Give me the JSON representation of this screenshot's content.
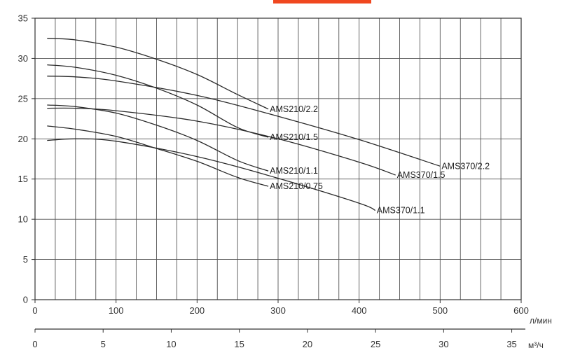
{
  "accent_bar_color": "#f0471f",
  "chart_data": {
    "type": "line",
    "title": "",
    "ylabel": "",
    "ylim": [
      0,
      35
    ],
    "y_ticks": [
      "0",
      "5",
      "10",
      "15",
      "20",
      "25",
      "30",
      "35"
    ],
    "x_axes": [
      {
        "unit": "л/мин",
        "range": [
          0,
          600
        ],
        "ticks": [
          "0",
          "100",
          "200",
          "300",
          "400",
          "500",
          "600"
        ]
      },
      {
        "unit": "м³/ч",
        "range": [
          0,
          36
        ],
        "ticks": [
          "0",
          "5",
          "10",
          "15",
          "20",
          "25",
          "30",
          "35"
        ]
      }
    ],
    "grid": true,
    "legend": "inline labels at curve ends",
    "series": [
      {
        "name": "AMS210/2.2",
        "x": [
          15,
          50,
          100,
          150,
          200,
          250,
          288
        ],
        "y": [
          32.5,
          32.3,
          31.4,
          29.9,
          28.0,
          25.5,
          23.7
        ]
      },
      {
        "name": "AMS210/1.5",
        "x": [
          15,
          50,
          100,
          150,
          200,
          250,
          288
        ],
        "y": [
          29.2,
          28.9,
          27.9,
          26.3,
          24.2,
          21.4,
          20.2
        ]
      },
      {
        "name": "AMS210/1.1",
        "x": [
          15,
          50,
          100,
          150,
          200,
          250,
          288
        ],
        "y": [
          24.2,
          24.0,
          23.2,
          21.7,
          19.8,
          17.3,
          16.0
        ]
      },
      {
        "name": "AMS210/0.75",
        "x": [
          15,
          50,
          100,
          150,
          200,
          250,
          288
        ],
        "y": [
          21.6,
          21.2,
          20.3,
          18.8,
          17.2,
          15.2,
          14.1
        ]
      },
      {
        "name": "AMS370/2.2",
        "x": [
          15,
          50,
          100,
          200,
          300,
          400,
          500
        ],
        "y": [
          27.8,
          27.7,
          27.2,
          25.4,
          22.8,
          19.9,
          16.6
        ]
      },
      {
        "name": "AMS370/1.5",
        "x": [
          15,
          50,
          100,
          200,
          300,
          400,
          445
        ],
        "y": [
          23.8,
          23.8,
          23.5,
          22.2,
          20.0,
          17.1,
          15.5
        ]
      },
      {
        "name": "AMS370/1.1",
        "x": [
          15,
          50,
          100,
          200,
          300,
          400,
          420
        ],
        "y": [
          19.8,
          20.0,
          19.7,
          17.8,
          15.1,
          12.0,
          11.1
        ]
      }
    ]
  }
}
